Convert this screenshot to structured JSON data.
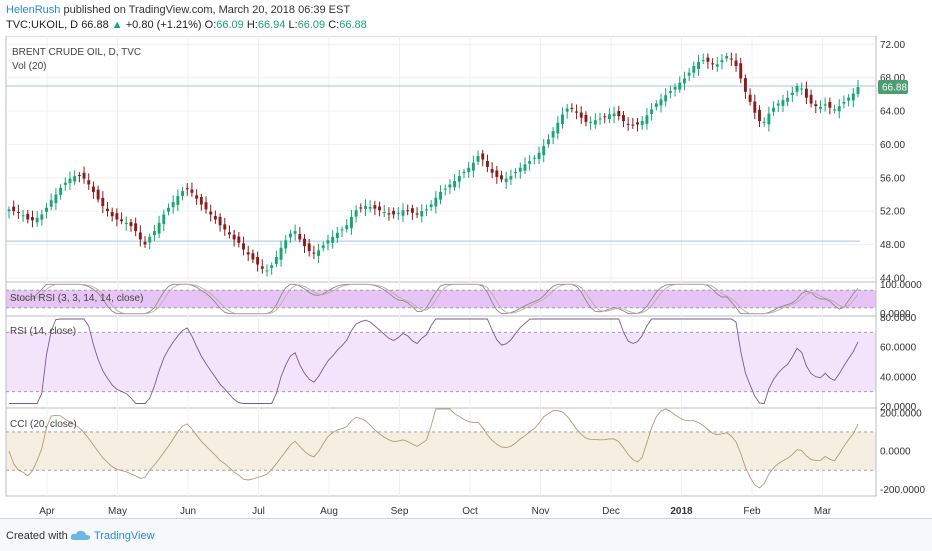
{
  "header": {
    "author": "HelenRush",
    "published": "published on TradingView.com, March 20, 2018 06:39 EST",
    "symbol": "TVC:UKOIL, D",
    "last": "66.88",
    "change": "+0.80 (+1.21%)",
    "o_label": "O:",
    "o_value": "66.09",
    "h_label": "H:",
    "h_value": "66.94",
    "l_label": "L:",
    "l_value": "66.09",
    "c_label": "C:",
    "c_value": "66.88"
  },
  "footer": {
    "created_with": "Created with",
    "brand": "TradingView"
  },
  "colors": {
    "up": "#17a673",
    "down": "#8b1a1a",
    "stoch_fill": "#e6c4f5",
    "rsi_fill": "#f3e3fb",
    "cci_fill": "#f6efe1",
    "price_tag": "#4a9e6f"
  },
  "chart_data": [
    {
      "type": "candlestick",
      "title": "BRENT CRUDE OIL, D, TVC",
      "subtitle": "Vol (20)",
      "y_ticks": [
        "72.00",
        "68.00",
        "64.00",
        "60.00",
        "56.00",
        "52.00",
        "48.00",
        "44.00"
      ],
      "ylim": [
        43.5,
        73
      ],
      "last_price_label": "66.88",
      "reference_lines": [
        67.0,
        48.4
      ],
      "x_labels": [
        "Apr",
        "May",
        "Jun",
        "Jul",
        "Aug",
        "Sep",
        "Oct",
        "Nov",
        "Dec",
        "2018",
        "Feb",
        "Mar"
      ],
      "close_series": [
        52.2,
        52.0,
        51.8,
        51.5,
        51.0,
        50.9,
        51.2,
        51.6,
        52.4,
        53.3,
        54.0,
        54.8,
        55.4,
        55.9,
        56.2,
        56.3,
        55.9,
        55.2,
        54.3,
        53.4,
        52.6,
        52.0,
        51.4,
        51.0,
        50.8,
        50.6,
        50.2,
        49.6,
        48.6,
        48.0,
        48.9,
        49.6,
        50.6,
        51.6,
        52.4,
        53.1,
        53.8,
        54.4,
        54.7,
        54.2,
        53.5,
        52.8,
        52.2,
        51.6,
        51.0,
        50.3,
        49.8,
        49.2,
        48.6,
        48.2,
        47.4,
        46.8,
        46.2,
        45.6,
        45.1,
        44.9,
        45.5,
        46.5,
        47.6,
        48.5,
        49.3,
        49.6,
        48.6,
        47.8,
        47.2,
        46.9,
        47.3,
        47.9,
        48.5,
        48.9,
        49.4,
        49.8,
        50.3,
        51.3,
        52.1,
        52.4,
        52.6,
        52.5,
        52.3,
        52.1,
        51.9,
        51.7,
        51.6,
        51.8,
        52.1,
        52.0,
        51.8,
        51.7,
        52.0,
        52.2,
        52.8,
        53.6,
        54.3,
        54.7,
        55.2,
        55.6,
        56.2,
        56.7,
        57.2,
        57.8,
        58.6,
        58.2,
        57.3,
        56.6,
        56.1,
        55.8,
        55.9,
        56.2,
        56.7,
        57.2,
        57.6,
        58.0,
        58.4,
        59.0,
        59.8,
        60.6,
        61.6,
        62.6,
        63.6,
        64.3,
        64.3,
        63.8,
        63.2,
        62.7,
        62.7,
        62.9,
        63.1,
        63.3,
        63.6,
        63.7,
        63.4,
        62.8,
        62.4,
        62.3,
        62.4,
        62.8,
        63.5,
        64.2,
        64.9,
        65.4,
        65.9,
        66.4,
        66.9,
        67.4,
        67.9,
        68.6,
        69.4,
        69.9,
        70.1,
        69.9,
        69.6,
        69.6,
        70.1,
        70.6,
        70.2,
        69.4,
        67.9,
        66.3,
        65.1,
        63.8,
        62.8,
        62.7,
        63.7,
        64.4,
        64.9,
        65.3,
        65.6,
        66.2,
        67.0,
        66.7,
        65.6,
        64.9,
        64.6,
        64.5,
        64.8,
        64.4,
        64.2,
        64.6,
        65.1,
        65.6,
        66.1,
        66.88
      ],
      "indicators": {
        "stoch_rsi": {
          "label": "Stoch RSI (3, 3, 14, 14, close)",
          "ticks": [
            "100.0000",
            "0.0000"
          ],
          "ylim": [
            -8,
            108
          ],
          "band": [
            20,
            80
          ]
        },
        "rsi": {
          "label": "RSI (14, close)",
          "ticks": [
            "80.0000",
            "60.0000",
            "40.0000",
            "20.0000"
          ],
          "ylim": [
            19,
            81
          ],
          "band": [
            30,
            70
          ]
        },
        "cci": {
          "label": "CCI (20, close)",
          "ticks": [
            "200.0000",
            "0.0000",
            "-200.0000"
          ],
          "ylim": [
            -235,
            225
          ],
          "band": [
            -100,
            100
          ]
        }
      }
    }
  ]
}
